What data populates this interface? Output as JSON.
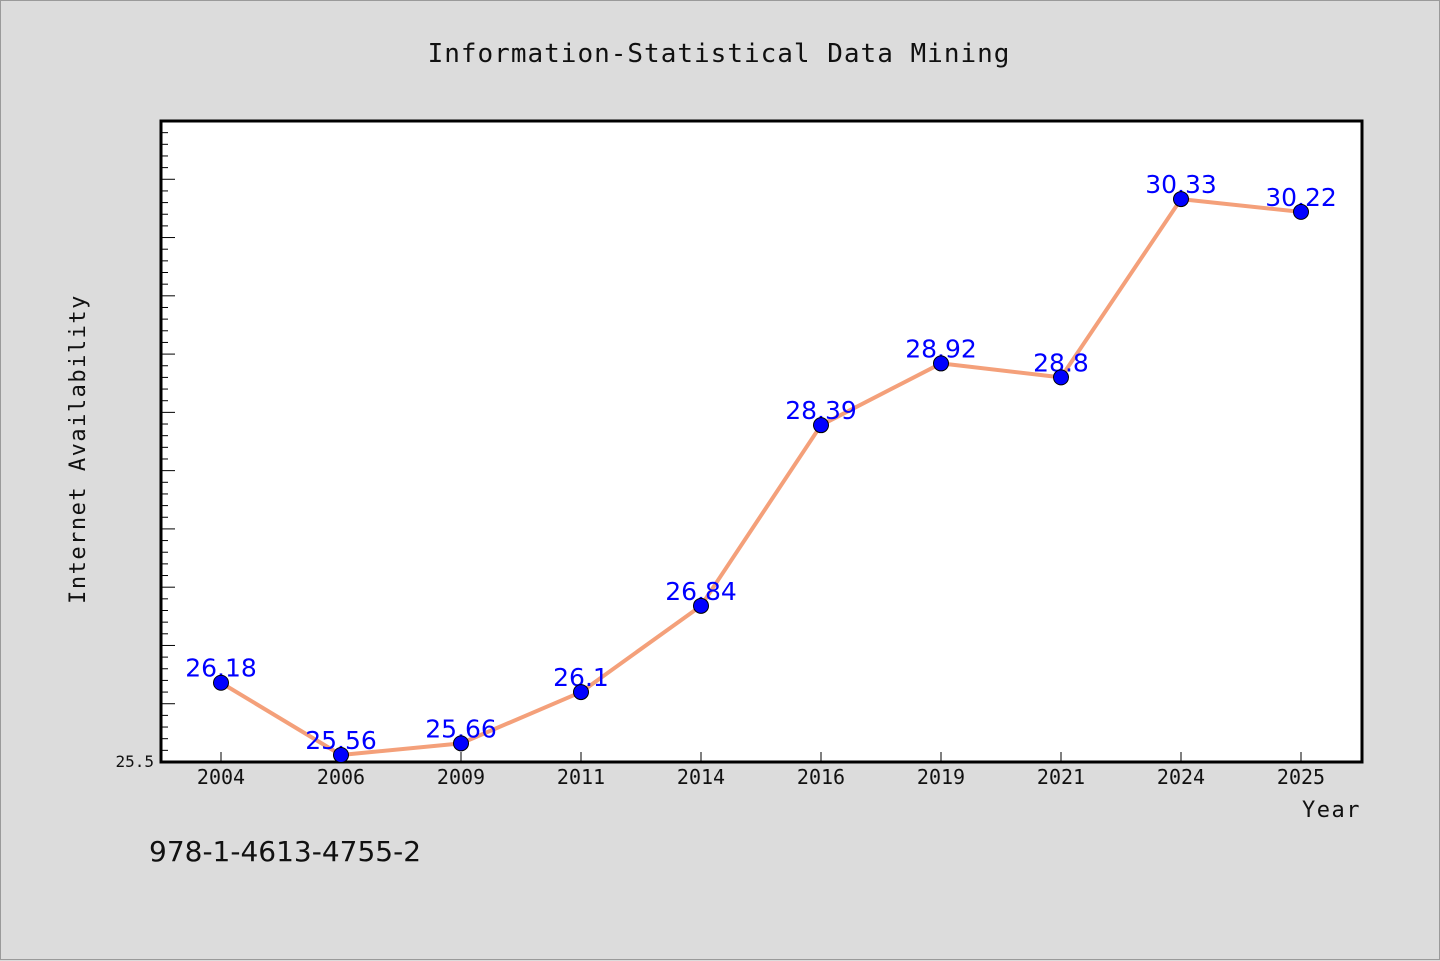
{
  "footer_text": "978-1-4613-4755-2",
  "chart_data": {
    "type": "line",
    "title": "Information-Statistical Data Mining",
    "xlabel": "Year",
    "ylabel": "Internet Availability",
    "categories": [
      "2004",
      "2006",
      "2009",
      "2011",
      "2014",
      "2016",
      "2019",
      "2021",
      "2024",
      "2025"
    ],
    "series": [
      {
        "values": [
          26.18,
          25.56,
          25.66,
          26.1,
          26.84,
          28.39,
          28.92,
          28.8,
          30.33,
          30.22
        ]
      }
    ],
    "ylim": [
      25.5,
      31.0
    ],
    "ymin_tick_label": "25.5",
    "grid": false,
    "colors": {
      "line": "#f4a07a",
      "marker": "#0000ff",
      "label": "#0000ff",
      "background": "#dcdcdc",
      "plot_area": "#ffffff"
    }
  }
}
